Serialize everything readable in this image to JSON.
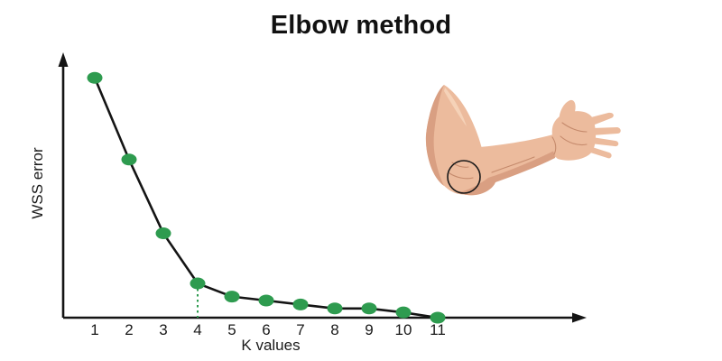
{
  "page": {
    "background": "#ffffff"
  },
  "chart_data": {
    "type": "line",
    "title": "Elbow method",
    "xlabel": "K values",
    "ylabel": "WSS error",
    "x": [
      1,
      2,
      3,
      4,
      5,
      6,
      7,
      8,
      9,
      10,
      11
    ],
    "series": [
      {
        "name": "WSS error",
        "values": [
          91,
          60,
          32,
          13,
          8,
          6.5,
          5,
          3.5,
          3.5,
          2,
          0
        ]
      }
    ],
    "xlim": [
      0,
      12
    ],
    "ylim": [
      0,
      100
    ],
    "grid": false,
    "legend": null,
    "elbow_k": 4,
    "point_color": "#2e9b4f",
    "line_color": "#141414",
    "elbow_guide_color": "#2e9b4f",
    "axis_color": "#141414"
  },
  "illustration": {
    "label": "bent-arm-with-elbow-circled",
    "skin_color": "#ecbb9d",
    "shadow_color": "#d99f82",
    "highlight_color": "#f5d2b8",
    "crease_color": "#c58a6c",
    "circle_color": "#1a1a1a"
  }
}
